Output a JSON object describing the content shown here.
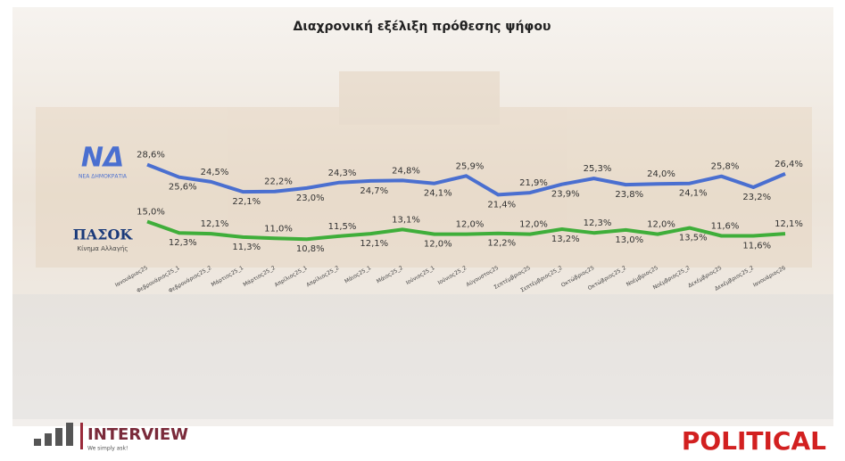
{
  "chart_data": {
    "type": "line",
    "title": "Διαχρονική εξέλιξη πρόθεσης ψήφου",
    "categories": [
      "Ιανουάριος25",
      "Φεβρουάριος25_1",
      "Φεβρουάριος25_2",
      "Μάρτιος25_1",
      "Μάρτιος25_2",
      "Απρίλιος25_1",
      "Απρίλιος25_2",
      "Μάιος25_1",
      "Μάιος25_2",
      "Ιούνιος25_1",
      "Ιούνιος25_2",
      "Αύγουστος25",
      "Σεπτέμβριος25",
      "Σεπτέμβριος25_2",
      "Οκτώβριος25",
      "Οκτώβριος25_2",
      "Νοέμβριος25",
      "Νοέμβριος25_2",
      "Δεκέμβριος25",
      "Δεκέμβριος25_2",
      "Ιανουάριος26"
    ],
    "ylim": [
      0,
      30
    ],
    "series": [
      {
        "name": "ΝΔ",
        "subtitle": "ΝΕΑ ΔΗΜΟΚΡΑΤΙΑ",
        "color": "#4a6fd0",
        "values": [
          28.6,
          25.6,
          24.5,
          22.1,
          22.2,
          23.0,
          24.3,
          24.7,
          24.8,
          24.1,
          25.9,
          21.4,
          21.9,
          23.9,
          25.3,
          23.8,
          24.0,
          24.1,
          25.8,
          23.2,
          26.4
        ],
        "value_labels": [
          "28,6%",
          "25,6%",
          "24,5%",
          "22,1%",
          "22,2%",
          "23,0%",
          "24,3%",
          "24,7%",
          "24,8%",
          "24,1%",
          "25,9%",
          "21,4%",
          "21,9%",
          "23,9%",
          "25,3%",
          "23,8%",
          "24,0%",
          "24,1%",
          "25,8%",
          "23,2%",
          "26,4%"
        ]
      },
      {
        "name": "ΠΑΣΟΚ",
        "subtitle": "Κίνημα Αλλαγής",
        "color": "#3fae3a",
        "values": [
          15.0,
          12.3,
          12.1,
          11.3,
          11.0,
          10.8,
          11.5,
          12.1,
          13.1,
          12.0,
          12.0,
          12.2,
          12.0,
          13.2,
          12.3,
          13.0,
          12.0,
          13.5,
          11.6,
          11.6,
          12.1
        ],
        "value_labels": [
          "15,0%",
          "12,3%",
          "12,1%",
          "11,3%",
          "11,0%",
          "10,8%",
          "11,5%",
          "12,1%",
          "13,1%",
          "12,0%",
          "12,0%",
          "12,2%",
          "12,0%",
          "13,2%",
          "12,3%",
          "13,0%",
          "12,0%",
          "13,5%",
          "11,6%",
          "11,6%",
          "12,1%"
        ]
      }
    ]
  },
  "branding": {
    "interview": "INTERVIEW",
    "tagline": "We simply ask!",
    "political": "POLITICAL"
  }
}
